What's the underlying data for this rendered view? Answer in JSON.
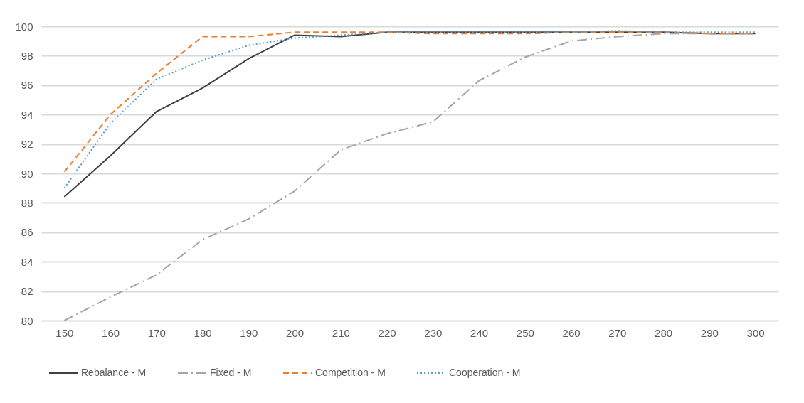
{
  "chart_data": {
    "type": "line",
    "categories": [
      "150",
      "160",
      "170",
      "180",
      "190",
      "200",
      "210",
      "220",
      "230",
      "240",
      "250",
      "260",
      "270",
      "280",
      "290",
      "300"
    ],
    "ylim": [
      80,
      100
    ],
    "yticks": [
      80,
      82,
      84,
      86,
      88,
      90,
      92,
      94,
      96,
      98,
      100
    ],
    "grid": "y",
    "legend": "bottom",
    "series": [
      {
        "name": "Rebalance - M",
        "color": "#404040",
        "line_style": "solid",
        "values": [
          88.4,
          91.2,
          94.2,
          95.8,
          97.8,
          99.4,
          99.3,
          99.6,
          99.6,
          99.6,
          99.6,
          99.6,
          99.6,
          99.6,
          99.5,
          99.5
        ]
      },
      {
        "name": "Fixed - M",
        "color": "#a5a5a5",
        "line_style": "dashdot",
        "values": [
          80.0,
          81.6,
          83.1,
          85.5,
          86.9,
          88.8,
          91.6,
          92.7,
          93.5,
          96.3,
          97.9,
          99.0,
          99.3,
          99.5,
          99.5,
          99.5
        ]
      },
      {
        "name": "Competition - M",
        "color": "#ed7d31",
        "line_style": "dashed",
        "values": [
          90.1,
          94.0,
          96.8,
          99.3,
          99.3,
          99.6,
          99.6,
          99.6,
          99.5,
          99.5,
          99.5,
          99.6,
          99.6,
          99.6,
          99.5,
          99.5
        ]
      },
      {
        "name": "Cooperation - M",
        "color": "#5b9bd5",
        "line_style": "dotted",
        "values": [
          89.0,
          93.4,
          96.4,
          97.7,
          98.7,
          99.2,
          99.4,
          99.6,
          99.6,
          99.6,
          99.6,
          99.6,
          99.7,
          99.6,
          99.6,
          99.6
        ]
      }
    ]
  }
}
